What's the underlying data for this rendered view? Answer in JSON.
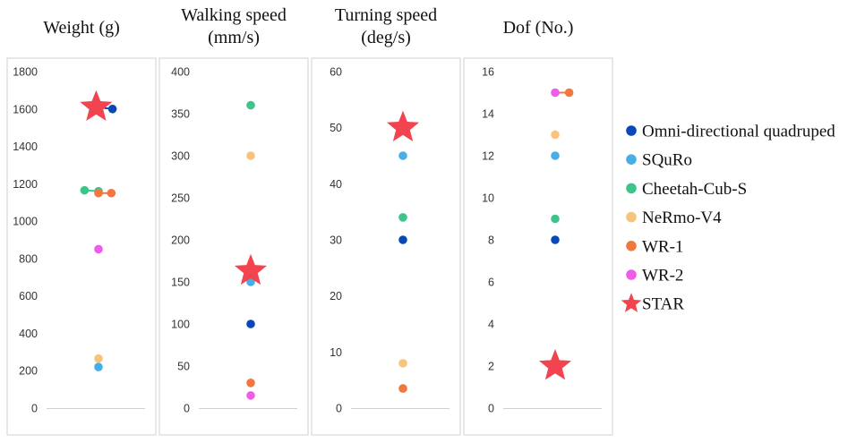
{
  "series_colors": {
    "Omni-directional quadruped": "#0a47b8",
    "SQuRo": "#4aaee6",
    "Cheetah-Cub-S": "#3dc48a",
    "NeRmo-V4": "#f7c47c",
    "WR-1": "#f2763d",
    "WR-2": "#f05cea",
    "STAR": "#f2444f"
  },
  "legend": [
    {
      "name": "Omni-directional quadruped",
      "color": "#0a47b8",
      "marker": "circle"
    },
    {
      "name": "SQuRo",
      "color": "#4aaee6",
      "marker": "circle"
    },
    {
      "name": "Cheetah-Cub-S",
      "color": "#3dc48a",
      "marker": "circle"
    },
    {
      "name": "NeRmo-V4",
      "color": "#f7c47c",
      "marker": "circle"
    },
    {
      "name": "WR-1",
      "color": "#f2763d",
      "marker": "circle"
    },
    {
      "name": "WR-2",
      "color": "#f05cea",
      "marker": "circle"
    },
    {
      "name": "STAR",
      "color": "#f2444f",
      "marker": "star"
    }
  ],
  "chart_data": [
    {
      "type": "scatter",
      "title": "Weight (g)",
      "ylim": [
        0,
        1800
      ],
      "yticks": [
        0,
        200,
        400,
        600,
        800,
        1000,
        1200,
        1400,
        1600,
        1800
      ],
      "grid": false,
      "points": [
        {
          "series": "Omni-directional quadruped",
          "value": 1600,
          "offset": 0.6
        },
        {
          "series": "SQuRo",
          "value": 220,
          "offset": 0.0
        },
        {
          "series": "Cheetah-Cub-S",
          "value": 1165,
          "offset": -0.6
        },
        {
          "series": "Cheetah-Cub-S",
          "value": 1160,
          "offset": 0.0
        },
        {
          "series": "NeRmo-V4",
          "value": 265,
          "offset": 0.0
        },
        {
          "series": "WR-1",
          "value": 1150,
          "offset": 0.0
        },
        {
          "series": "WR-1",
          "value": 1150,
          "offset": 0.55
        },
        {
          "series": "WR-2",
          "value": 850,
          "offset": 0.0
        },
        {
          "series": "STAR",
          "value": 1610,
          "offset": -0.1
        }
      ],
      "links": [
        {
          "series": "Omni-directional quadruped",
          "from": [
            -0.1,
            1610
          ],
          "to": [
            0.6,
            1600
          ]
        },
        {
          "series": "Cheetah-Cub-S",
          "from": [
            -0.6,
            1165
          ],
          "to": [
            0.0,
            1160
          ]
        },
        {
          "series": "WR-1",
          "from": [
            0.0,
            1150
          ],
          "to": [
            0.55,
            1150
          ]
        }
      ]
    },
    {
      "type": "scatter",
      "title": "Walking speed (mm/s)",
      "ylim": [
        0,
        400
      ],
      "yticks": [
        0,
        50,
        100,
        150,
        200,
        250,
        300,
        350,
        400
      ],
      "grid": false,
      "points": [
        {
          "series": "Omni-directional quadruped",
          "value": 100,
          "offset": 0.0
        },
        {
          "series": "SQuRo",
          "value": 150,
          "offset": 0.0
        },
        {
          "series": "Cheetah-Cub-S",
          "value": 360,
          "offset": 0.0
        },
        {
          "series": "NeRmo-V4",
          "value": 300,
          "offset": 0.0
        },
        {
          "series": "WR-1",
          "value": 30,
          "offset": 0.0
        },
        {
          "series": "WR-2",
          "value": 15,
          "offset": 0.0
        },
        {
          "series": "STAR",
          "value": 163,
          "offset": 0.0
        }
      ],
      "links": []
    },
    {
      "type": "scatter",
      "title": "Turning speed (deg/s)",
      "ylim": [
        0,
        60
      ],
      "yticks": [
        0,
        10,
        20,
        30,
        40,
        50,
        60
      ],
      "grid": false,
      "points": [
        {
          "series": "Omni-directional quadruped",
          "value": 30,
          "offset": 0.0
        },
        {
          "series": "SQuRo",
          "value": 45,
          "offset": 0.0
        },
        {
          "series": "Cheetah-Cub-S",
          "value": 34,
          "offset": 0.0
        },
        {
          "series": "NeRmo-V4",
          "value": 8,
          "offset": 0.0
        },
        {
          "series": "WR-1",
          "value": 3.5,
          "offset": 0.0
        },
        {
          "series": "STAR",
          "value": 50,
          "offset": 0.0
        }
      ],
      "links": []
    },
    {
      "type": "scatter",
      "title": "Dof (No.)",
      "ylim": [
        0,
        16
      ],
      "yticks": [
        0,
        2,
        4,
        6,
        8,
        10,
        12,
        14,
        16
      ],
      "grid": false,
      "points": [
        {
          "series": "Omni-directional quadruped",
          "value": 8,
          "offset": 0.0
        },
        {
          "series": "SQuRo",
          "value": 12,
          "offset": 0.0
        },
        {
          "series": "Cheetah-Cub-S",
          "value": 9,
          "offset": 0.0
        },
        {
          "series": "NeRmo-V4",
          "value": 13,
          "offset": 0.0
        },
        {
          "series": "WR-1",
          "value": 15,
          "offset": 0.6
        },
        {
          "series": "WR-2",
          "value": 15,
          "offset": 0.0
        },
        {
          "series": "STAR",
          "value": 2,
          "offset": 0.0
        }
      ],
      "links": [
        {
          "series": "WR-1",
          "from": [
            0.0,
            15
          ],
          "to": [
            0.6,
            15
          ]
        }
      ]
    }
  ]
}
